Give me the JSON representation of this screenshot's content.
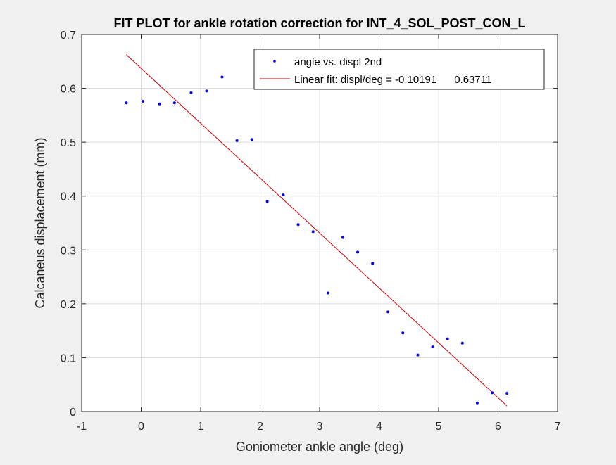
{
  "chart_data": {
    "type": "scatter",
    "title": "FIT PLOT for ankle rotation correction for INT_4_SOL_POST_CON_L",
    "xlabel": "Goniometer ankle angle (deg)",
    "ylabel": "Calcaneus displacement (mm)",
    "xlim": [
      -1,
      7
    ],
    "ylim": [
      0,
      0.7
    ],
    "xticks": [
      -1,
      0,
      1,
      2,
      3,
      4,
      5,
      6,
      7
    ],
    "yticks": [
      0,
      0.1,
      0.2,
      0.3,
      0.4,
      0.5,
      0.6,
      0.7
    ],
    "xtick_labels": [
      "-1",
      "0",
      "1",
      "2",
      "3",
      "4",
      "5",
      "6",
      "7"
    ],
    "ytick_labels": [
      "0",
      "0.1",
      "0.2",
      "0.3",
      "0.4",
      "0.5",
      "0.6",
      "0.7"
    ],
    "grid": true,
    "legend_position": "top-right",
    "colors": {
      "points": "#0000e0",
      "fit": "#cc0000",
      "grid": "#dcdcdc",
      "axes_bg": "#ffffff",
      "figure_bg": "#f0f0f0"
    },
    "series": [
      {
        "name": "angle vs. displ 2nd",
        "kind": "points",
        "x": [
          -0.25,
          0.03,
          0.31,
          0.56,
          0.84,
          1.1,
          1.36,
          1.61,
          1.86,
          2.12,
          2.39,
          2.64,
          2.89,
          3.14,
          3.39,
          3.64,
          3.89,
          4.15,
          4.4,
          4.65,
          4.9,
          5.15,
          5.4,
          5.65,
          5.9,
          6.15
        ],
        "y": [
          0.573,
          0.576,
          0.571,
          0.573,
          0.592,
          0.595,
          0.621,
          0.503,
          0.505,
          0.39,
          0.402,
          0.347,
          0.334,
          0.22,
          0.323,
          0.296,
          0.275,
          0.185,
          0.146,
          0.105,
          0.12,
          0.135,
          0.127,
          0.016,
          0.035,
          0.034
        ]
      },
      {
        "name": "Linear fit: displ/deg = -0.10191      0.63711",
        "kind": "line",
        "slope": -0.10191,
        "intercept": 0.63711,
        "x": [
          -0.25,
          6.15
        ]
      }
    ]
  }
}
